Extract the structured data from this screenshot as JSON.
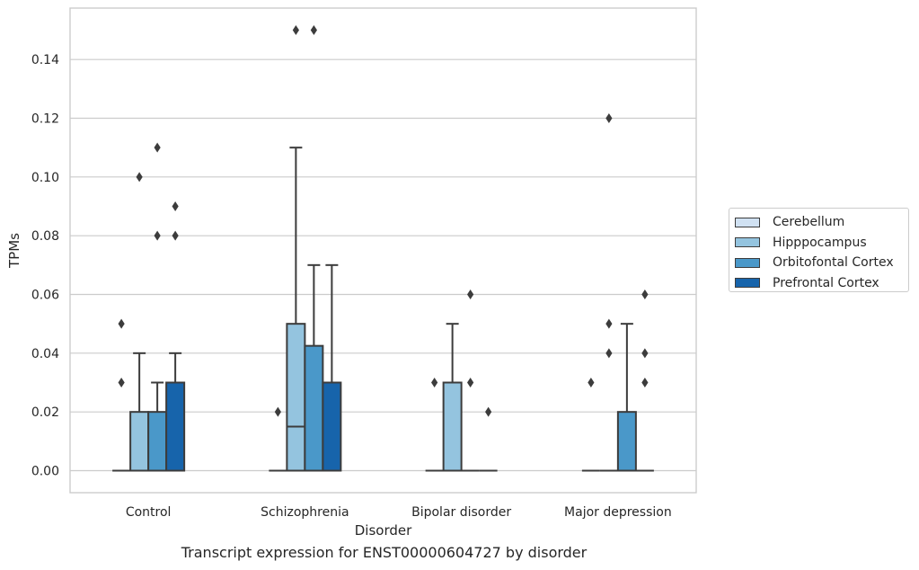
{
  "chart_data": {
    "type": "box",
    "caption": "Transcript expression for ENST00000604727 by disorder",
    "xlabel": "Disorder",
    "ylabel": "TPMs",
    "ylim": [
      -0.0075,
      0.1575
    ],
    "yticks": [
      "0.00",
      "0.02",
      "0.04",
      "0.06",
      "0.08",
      "0.10",
      "0.12",
      "0.14"
    ],
    "categories": [
      "Control",
      "Schizophrenia",
      "Bipolar disorder",
      "Major depression"
    ],
    "grid": true,
    "legend_position": "right",
    "series": [
      {
        "name": "Cerebellum",
        "color": "#d0e1f2",
        "boxes": [
          {
            "q1": 0,
            "median": 0,
            "q3": 0,
            "whisker_low": 0,
            "whisker_high": 0,
            "outliers": [
              0.05,
              0.03
            ]
          },
          {
            "q1": 0,
            "median": 0,
            "q3": 0,
            "whisker_low": 0,
            "whisker_high": 0,
            "outliers": [
              0.02
            ]
          },
          {
            "q1": 0,
            "median": 0,
            "q3": 0,
            "whisker_low": 0,
            "whisker_high": 0,
            "outliers": [
              0.03
            ]
          },
          {
            "q1": 0,
            "median": 0,
            "q3": 0,
            "whisker_low": 0,
            "whisker_high": 0,
            "outliers": [
              0.03
            ]
          }
        ]
      },
      {
        "name": "Hipppocampus",
        "color": "#94c4df",
        "boxes": [
          {
            "q1": 0,
            "median": 0,
            "q3": 0.02,
            "whisker_low": 0,
            "whisker_high": 0.04,
            "outliers": [
              0.1
            ]
          },
          {
            "q1": 0,
            "median": 0.015,
            "q3": 0.05,
            "whisker_low": 0,
            "whisker_high": 0.11,
            "outliers": [
              0.15
            ]
          },
          {
            "q1": 0,
            "median": 0,
            "q3": 0.03,
            "whisker_low": 0,
            "whisker_high": 0.05,
            "outliers": []
          },
          {
            "q1": 0,
            "median": 0,
            "q3": 0,
            "whisker_low": 0,
            "whisker_high": 0,
            "outliers": [
              0.05,
              0.04,
              0.12
            ]
          }
        ]
      },
      {
        "name": "Orbitofontal Cortex",
        "color": "#4a98c9",
        "boxes": [
          {
            "q1": 0,
            "median": 0,
            "q3": 0.02,
            "whisker_low": 0,
            "whisker_high": 0.03,
            "outliers": [
              0.11,
              0.08
            ]
          },
          {
            "q1": 0,
            "median": 0,
            "q3": 0.0425,
            "whisker_low": 0,
            "whisker_high": 0.07,
            "outliers": [
              0.15
            ]
          },
          {
            "q1": 0,
            "median": 0,
            "q3": 0,
            "whisker_low": 0,
            "whisker_high": 0,
            "outliers": [
              0.06,
              0.03
            ]
          },
          {
            "q1": 0,
            "median": 0,
            "q3": 0.02,
            "whisker_low": 0,
            "whisker_high": 0.05,
            "outliers": []
          }
        ]
      },
      {
        "name": "Prefrontal Cortex",
        "color": "#1764ab",
        "boxes": [
          {
            "q1": 0,
            "median": 0,
            "q3": 0.03,
            "whisker_low": 0,
            "whisker_high": 0.04,
            "outliers": [
              0.09,
              0.08
            ]
          },
          {
            "q1": 0,
            "median": 0,
            "q3": 0.03,
            "whisker_low": 0,
            "whisker_high": 0.07,
            "outliers": []
          },
          {
            "q1": 0,
            "median": 0,
            "q3": 0,
            "whisker_low": 0,
            "whisker_high": 0,
            "outliers": [
              0.02
            ]
          },
          {
            "q1": 0,
            "median": 0,
            "q3": 0,
            "whisker_low": 0,
            "whisker_high": 0,
            "outliers": [
              0.06,
              0.04,
              0.03
            ]
          }
        ]
      }
    ]
  }
}
